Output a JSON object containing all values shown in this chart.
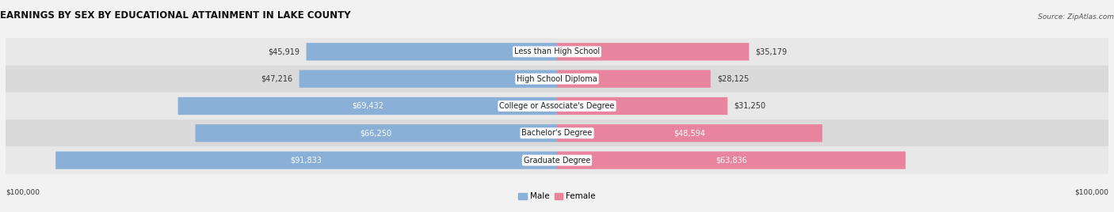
{
  "title": "EARNINGS BY SEX BY EDUCATIONAL ATTAINMENT IN LAKE COUNTY",
  "source": "Source: ZipAtlas.com",
  "categories": [
    "Less than High School",
    "High School Diploma",
    "College or Associate's Degree",
    "Bachelor's Degree",
    "Graduate Degree"
  ],
  "male_values": [
    45919,
    47216,
    69432,
    66250,
    91833
  ],
  "female_values": [
    35179,
    28125,
    31250,
    48594,
    63836
  ],
  "male_labels": [
    "$45,919",
    "$47,216",
    "$69,432",
    "$66,250",
    "$91,833"
  ],
  "female_labels": [
    "$35,179",
    "$28,125",
    "$31,250",
    "$48,594",
    "$63,836"
  ],
  "male_color": "#8ab0d8",
  "female_color": "#e8849e",
  "max_value": 100000,
  "axis_label_left": "$100,000",
  "axis_label_right": "$100,000",
  "legend_male": "Male",
  "legend_female": "Female",
  "bg_color": "#f2f2f2",
  "row_colors": [
    "#e8e8e8",
    "#dadada",
    "#e8e8e8",
    "#dadada",
    "#e8e8e8"
  ],
  "title_fontsize": 8.5,
  "label_fontsize": 7,
  "category_fontsize": 7,
  "source_fontsize": 6.5
}
